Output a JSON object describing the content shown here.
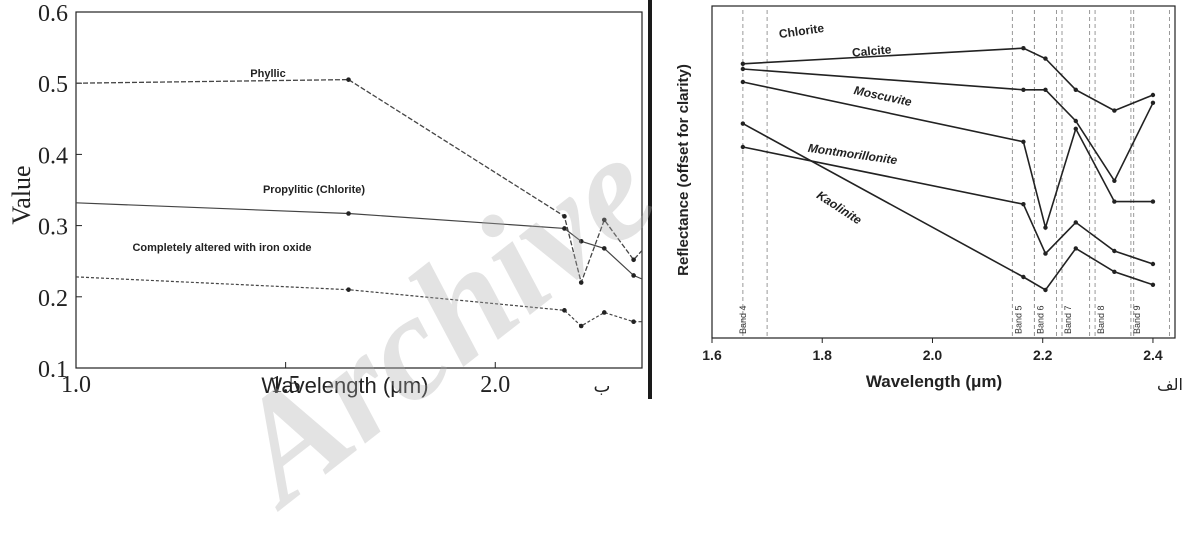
{
  "watermark": "Archive",
  "chart_data": [
    {
      "type": "line",
      "xlabel": "Wavelength (μm)",
      "ylabel": "Value",
      "panel_label": "ب",
      "xlim": [
        1.0,
        2.35
      ],
      "ylim": [
        0.1,
        0.6
      ],
      "x_ticks": [
        "1.0",
        "1.5",
        "2.0"
      ],
      "x_tick_values": [
        1.0,
        1.5,
        2.0
      ],
      "y_ticks": [
        "0.1",
        "0.2",
        "0.3",
        "0.4",
        "0.5",
        "0.6"
      ],
      "y_tick_values": [
        0.1,
        0.2,
        0.3,
        0.4,
        0.5,
        0.6
      ],
      "series": [
        {
          "name": "Phyllic",
          "x": [
            1.0,
            1.65,
            2.165,
            2.205,
            2.26,
            2.33,
            2.35
          ],
          "y": [
            0.5,
            0.505,
            0.313,
            0.22,
            0.308,
            0.252,
            0.265
          ]
        },
        {
          "name": "Propylitic (Chlorite)",
          "x": [
            1.0,
            1.65,
            2.165,
            2.205,
            2.26,
            2.33,
            2.35
          ],
          "y": [
            0.332,
            0.317,
            0.296,
            0.278,
            0.268,
            0.23,
            0.225
          ]
        },
        {
          "name": "Completely altered with iron oxide",
          "x": [
            1.0,
            1.65,
            2.165,
            2.205,
            2.26,
            2.33,
            2.35
          ],
          "y": [
            0.228,
            0.21,
            0.181,
            0.159,
            0.178,
            0.165,
            0.165
          ]
        }
      ]
    },
    {
      "type": "line",
      "xlabel": "Wavelength (μm)",
      "ylabel": "Reflectance (offset for clarity)",
      "panel_label": "الف",
      "xlim": [
        1.6,
        2.44
      ],
      "x_ticks": [
        "1.6",
        "1.8",
        "2.0",
        "2.2",
        "2.4"
      ],
      "x_tick_values": [
        1.6,
        1.8,
        2.0,
        2.2,
        2.4
      ],
      "bands": [
        {
          "name": "Band 4",
          "x": [
            1.656,
            1.7
          ]
        },
        {
          "name": "Band 5",
          "x": [
            2.145,
            2.185
          ]
        },
        {
          "name": "Band 6",
          "x": [
            2.185,
            2.225
          ]
        },
        {
          "name": "Band 7",
          "x": [
            2.235,
            2.285
          ]
        },
        {
          "name": "Band 8",
          "x": [
            2.295,
            2.365
          ]
        },
        {
          "name": "Band 9",
          "x": [
            2.36,
            2.43
          ]
        }
      ],
      "series": [
        {
          "name": "Chlorite",
          "x": [
            1.656,
            2.165,
            2.205,
            2.26,
            2.33,
            2.4
          ],
          "y": [
            0.92,
            0.98,
            0.94,
            0.82,
            0.74,
            0.8
          ]
        },
        {
          "name": "Calcite",
          "x": [
            1.656,
            2.165,
            2.205,
            2.26,
            2.33,
            2.4
          ],
          "y": [
            0.9,
            0.82,
            0.82,
            0.7,
            0.47,
            0.77
          ]
        },
        {
          "name": "Moscuvite",
          "x": [
            1.656,
            2.165,
            2.205,
            2.26,
            2.33,
            2.4
          ],
          "y": [
            0.85,
            0.62,
            0.29,
            0.67,
            0.39,
            0.39
          ]
        },
        {
          "name": "Montmorillonite",
          "x": [
            1.656,
            2.165,
            2.205,
            2.26,
            2.33,
            2.4
          ],
          "y": [
            0.6,
            0.38,
            0.19,
            0.31,
            0.2,
            0.15
          ]
        },
        {
          "name": "Kaolinite",
          "x": [
            1.656,
            2.165,
            2.205,
            2.26,
            2.33,
            2.4
          ],
          "y": [
            0.69,
            0.1,
            0.05,
            0.21,
            0.12,
            0.07
          ]
        }
      ]
    }
  ]
}
